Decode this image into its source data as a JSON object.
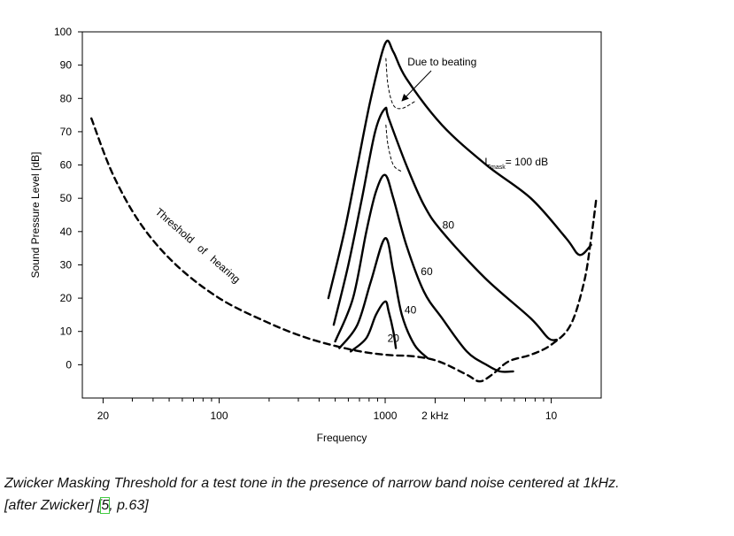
{
  "chart_data": {
    "type": "line",
    "xlabel": "Frequency",
    "ylabel": "Sound Pressure Level [dB]",
    "xscale": "log",
    "xlim": [
      15,
      20000
    ],
    "ylim": [
      -10,
      100
    ],
    "xticks": [
      20,
      100,
      1000,
      {
        "value": 2000,
        "label": "2 kHz"
      },
      {
        "value": 10000,
        "label": "10"
      }
    ],
    "xminorticks": [
      30,
      40,
      50,
      60,
      70,
      80,
      90,
      200,
      300,
      400,
      500,
      600,
      700,
      800,
      900,
      3000,
      4000,
      5000,
      6000,
      7000,
      8000,
      9000
    ],
    "yticks": [
      0,
      10,
      20,
      30,
      40,
      50,
      60,
      70,
      80,
      90,
      100
    ],
    "color": "#000000",
    "series": [
      {
        "dashed": true,
        "x": [
          17,
          23,
          34,
          55,
          100,
          190,
          340,
          630,
          1000,
          1500,
          2100,
          3100,
          3700,
          4400,
          5540,
          7540,
          10000,
          13100,
          15800,
          17400,
          18700
        ],
        "values": [
          74,
          57,
          42,
          30,
          20,
          13,
          8,
          4.5,
          3,
          2.5,
          1,
          -3,
          -5,
          -3,
          1,
          3,
          6,
          12,
          25,
          38,
          50
        ]
      },
      {
        "x": [
          455,
          568,
          682,
          820,
          1000,
          1120,
          1340,
          2200,
          4070,
          7540,
          12300,
          14800,
          17400
        ],
        "values": [
          20,
          40,
          60,
          80,
          96.5,
          94,
          86,
          72,
          60,
          50,
          38,
          33,
          36
        ]
      },
      {
        "x": [
          490,
          600,
          725,
          870,
          1000,
          1050,
          1340,
          1710,
          2200,
          4000,
          7500,
          9600,
          10800
        ],
        "values": [
          12,
          30,
          50,
          70,
          77,
          74,
          60,
          48,
          40,
          26,
          14,
          8,
          7.5
        ]
      },
      {
        "x": [
          500,
          640,
          770,
          880,
          1000,
          1120,
          1340,
          1710,
          2200,
          3100,
          4070,
          4900,
          5900
        ],
        "values": [
          7,
          20,
          40,
          52,
          57,
          50,
          36,
          22,
          14,
          4,
          0,
          -2,
          -2
        ]
      },
      {
        "x": [
          530,
          680,
          820,
          1000,
          1120,
          1260,
          1500,
          1800
        ],
        "values": [
          5,
          12,
          25,
          38,
          28,
          15,
          6,
          2
        ]
      },
      {
        "x": [
          620,
          770,
          880,
          1000,
          1050,
          1120,
          1160
        ],
        "values": [
          4,
          8,
          15,
          19,
          16,
          10,
          5
        ]
      },
      {
        "dashed": true,
        "thin": true,
        "x": [
          1010,
          1040,
          1120,
          1260,
          1500
        ],
        "values": [
          92,
          84,
          78,
          77,
          79
        ]
      },
      {
        "dashed": true,
        "thin": true,
        "x": [
          1010,
          1040,
          1120,
          1260
        ],
        "values": [
          72,
          66,
          60,
          58
        ]
      }
    ],
    "annotations": [
      {
        "text": "Due to beating",
        "x": 2200,
        "y": 91
      },
      {
        "text": "L",
        "sub": "mask",
        "rest": "= 100 dB",
        "x": 3970,
        "y": 61
      },
      {
        "text": "80",
        "x": 2400,
        "y": 42
      },
      {
        "text": "60",
        "x": 1780,
        "y": 28
      },
      {
        "text": "40",
        "x": 1420,
        "y": 16.5
      },
      {
        "text": "20",
        "x": 1120,
        "y": 8
      },
      {
        "text": "Threshold of hearing",
        "x": 72,
        "y": 35
      }
    ]
  },
  "caption": [
    "Zwicker Masking Threshold for a test tone in the presence of narrow band noise centered at 1kHz.",
    "[after Zwicker] [",
    "5",
    ", p.63]"
  ]
}
